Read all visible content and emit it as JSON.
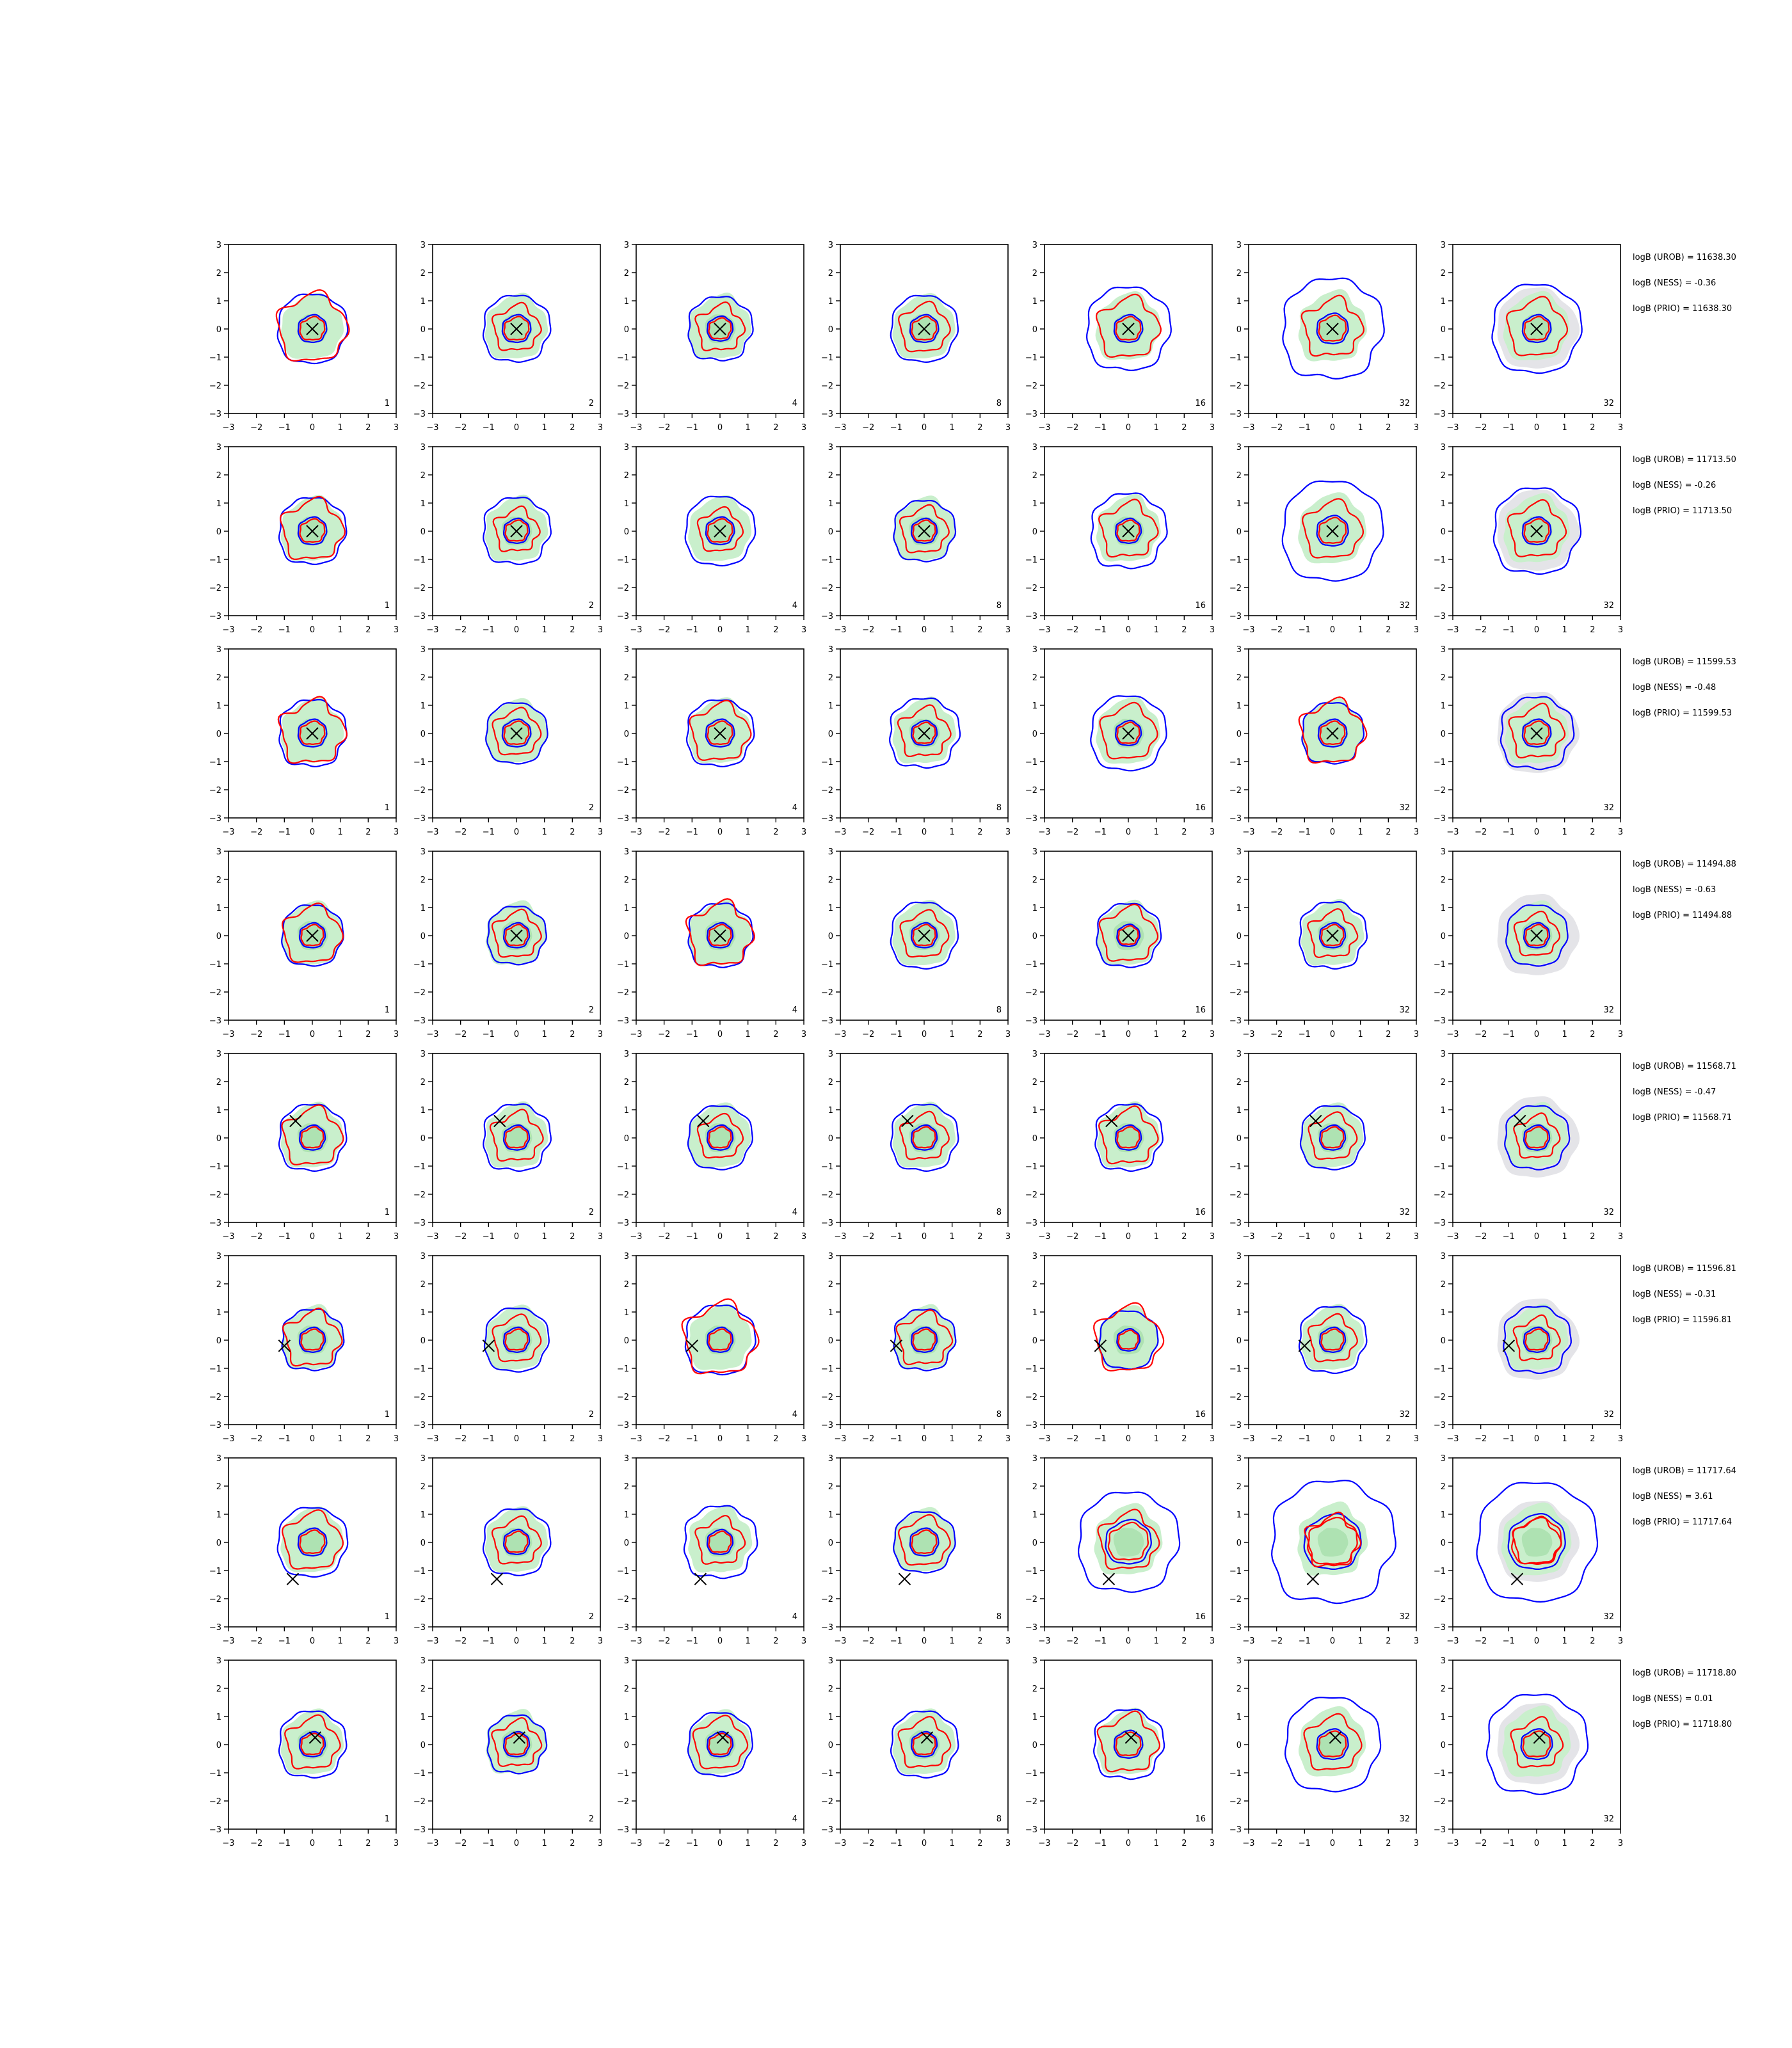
{
  "chart_data": {
    "type": "contour-grid",
    "rows": 8,
    "cols": 7,
    "xlim": [
      -3,
      3
    ],
    "ylim": [
      -3,
      3
    ],
    "ticks": [
      -3,
      -2,
      -1,
      0,
      1,
      2,
      3
    ],
    "tick_labels": [
      "−3",
      "−2",
      "−1",
      "0",
      "1",
      "2",
      "3"
    ],
    "panel_labels": [
      "1",
      "2",
      "4",
      "8",
      "16",
      "32",
      "32"
    ],
    "colors": {
      "fill": "#c9efcc",
      "fill_inner": "#aee2b2",
      "prior_fill": "#e4e4e8",
      "prior_fill_inner": "#d2d2d8",
      "blue": "#0000ff",
      "red": "#ff0000",
      "marker": "#000000"
    },
    "marker_symbol": "x",
    "contour_levels": [
      "outer",
      "inner"
    ],
    "rows_data": [
      {
        "marker": [
          0,
          0
        ],
        "annotations": [
          "logB (UROB) = 11638.30",
          "logB (NESS) = -0.36",
          "logB (PRIO) = 11638.30"
        ],
        "blue_outer": [
          1.25,
          1.2,
          1.15,
          1.2,
          1.5,
          1.8,
          1.6,
          1.0,
          1.05
        ],
        "red_outer": [
          1.2,
          0.8,
          0.8,
          0.85,
          1.05,
          1.0,
          1.0,
          0.85,
          1.0
        ],
        "blue_inner": [
          0.5,
          0.5,
          0.45,
          0.5,
          0.5,
          0.55,
          0.5,
          0.3,
          0.4
        ]
      },
      {
        "marker": [
          0,
          0
        ],
        "annotations": [
          "logB (UROB) = 11713.50",
          "logB (NESS) = -0.26",
          "logB (PRIO) = 11713.50"
        ],
        "blue_outer": [
          1.2,
          1.2,
          1.25,
          1.1,
          1.35,
          1.8,
          1.55,
          1.1,
          1.05
        ],
        "red_outer": [
          1.05,
          0.75,
          0.75,
          0.8,
          0.95,
          1.0,
          0.95,
          0.7,
          0.85
        ],
        "blue_inner": [
          0.5,
          0.45,
          0.5,
          0.45,
          0.45,
          0.55,
          0.5,
          0.3,
          0.4
        ]
      },
      {
        "marker": [
          0,
          0
        ],
        "annotations": [
          "logB (UROB) = 11599.53",
          "logB (NESS) = -0.48",
          "logB (PRIO) = 11599.53"
        ],
        "blue_outer": [
          1.2,
          1.1,
          1.2,
          1.25,
          1.35,
          1.1,
          1.3,
          1.0,
          1.05
        ],
        "red_outer": [
          1.1,
          0.8,
          1.0,
          0.85,
          0.95,
          1.1,
          0.9,
          0.75,
          0.8
        ],
        "blue_inner": [
          0.5,
          0.5,
          0.5,
          0.45,
          0.45,
          0.5,
          0.5,
          0.3,
          0.4
        ]
      },
      {
        "marker": [
          0,
          0
        ],
        "annotations": [
          "logB (UROB) = 11494.88",
          "logB (NESS) = -0.63",
          "logB (PRIO) = 11494.88"
        ],
        "blue_outer": [
          1.1,
          1.05,
          1.15,
          1.2,
          1.15,
          1.2,
          1.1,
          0.95,
          0.95
        ],
        "red_outer": [
          1.0,
          0.8,
          1.1,
          0.8,
          0.95,
          0.8,
          0.75,
          0.65,
          0.7
        ],
        "blue_inner": [
          0.45,
          0.45,
          0.45,
          0.45,
          0.4,
          0.45,
          0.45,
          0.3,
          0.35
        ]
      },
      {
        "marker": [
          -0.6,
          0.6
        ],
        "annotations": [
          "logB (UROB) = 11568.71",
          "logB (NESS) = -0.47",
          "logB (PRIO) = 11568.71"
        ],
        "blue_outer": [
          1.2,
          1.2,
          1.15,
          1.2,
          1.2,
          1.15,
          1.15,
          0.95,
          0.95
        ],
        "red_outer": [
          1.0,
          0.85,
          0.75,
          0.8,
          0.95,
          0.8,
          0.75,
          0.6,
          0.7
        ],
        "blue_inner": [
          0.45,
          0.45,
          0.45,
          0.45,
          0.45,
          0.45,
          0.45,
          0.35,
          0.4
        ]
      },
      {
        "marker": [
          -1.0,
          -0.2
        ],
        "annotations": [
          "logB (UROB) = 11596.81",
          "logB (NESS) = -0.31",
          "logB (PRIO) = 11596.81"
        ],
        "blue_outer": [
          1.1,
          1.15,
          1.25,
          1.1,
          1.05,
          1.2,
          1.2,
          0.9,
          1.0
        ],
        "red_outer": [
          0.95,
          0.8,
          1.25,
          0.9,
          1.15,
          0.8,
          0.75,
          0.75,
          0.7
        ],
        "blue_inner": [
          0.45,
          0.45,
          0.45,
          0.45,
          0.4,
          0.45,
          0.45,
          0.3,
          0.4
        ]
      },
      {
        "marker": [
          -0.7,
          -1.3
        ],
        "annotations": [
          "logB (UROB) = 11717.64",
          "logB (NESS) = 3.61",
          "logB (PRIO) = 11717.64"
        ],
        "blue_outer": [
          1.25,
          1.2,
          1.3,
          1.1,
          1.8,
          2.2,
          2.15,
          1.2,
          1.15
        ],
        "red_outer": [
          1.0,
          0.8,
          0.8,
          0.85,
          1.0,
          0.9,
          0.8,
          0.55,
          0.6
        ],
        "blue_inner": [
          0.5,
          0.45,
          0.45,
          0.5,
          0.8,
          1.0,
          1.0,
          0.35,
          0.45
        ]
      },
      {
        "marker": [
          0.1,
          0.25
        ],
        "annotations": [
          "logB (UROB) = 11718.80",
          "logB (NESS) = 0.01",
          "logB (PRIO) = 11718.80"
        ],
        "blue_outer": [
          1.2,
          1.05,
          1.15,
          1.2,
          1.25,
          1.7,
          1.8,
          1.05,
          1.15
        ],
        "red_outer": [
          0.9,
          0.8,
          0.9,
          0.85,
          1.0,
          0.95,
          0.85,
          0.7,
          0.75
        ],
        "blue_inner": [
          0.45,
          0.45,
          0.45,
          0.45,
          0.5,
          0.55,
          0.55,
          0.3,
          0.4
        ]
      }
    ]
  }
}
